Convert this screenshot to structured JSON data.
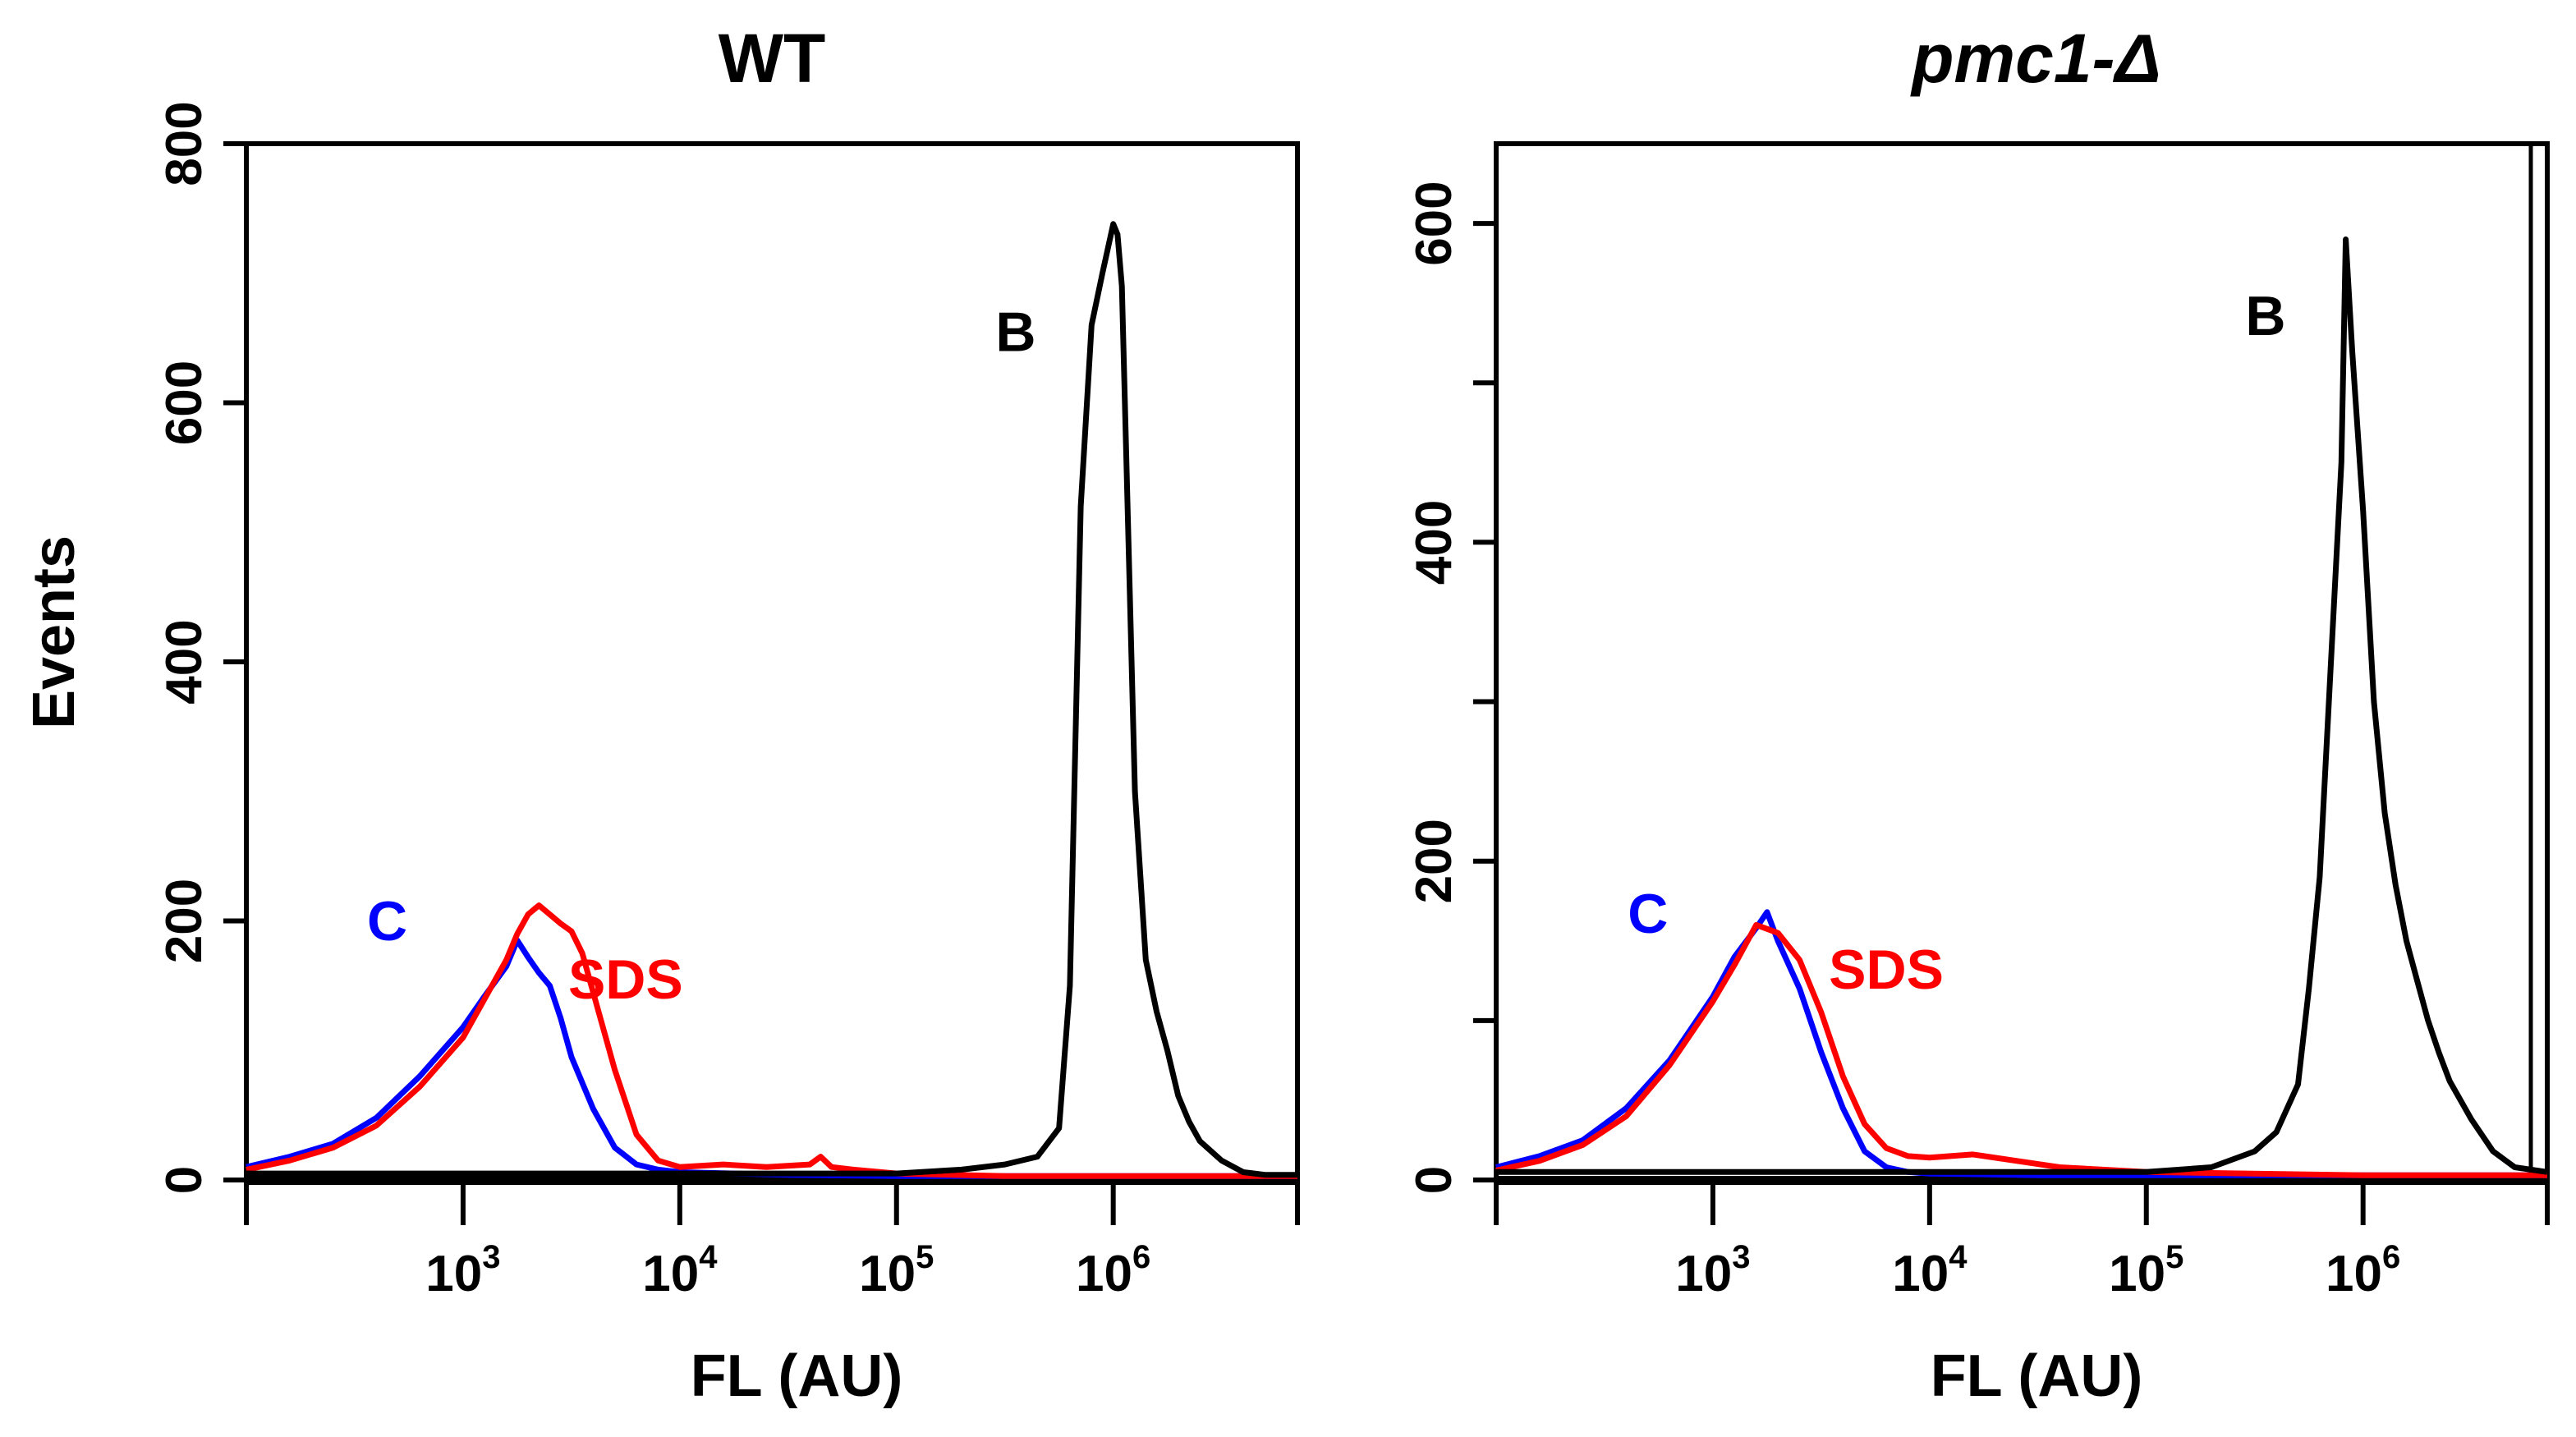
{
  "chart_data": [
    {
      "type": "line",
      "title": "WT",
      "xlabel": "FL (AU)",
      "ylabel": "Events",
      "xscale": "log",
      "xlim_log10": [
        2.0,
        6.85
      ],
      "ylim": [
        0,
        800
      ],
      "yticks": [
        0,
        200,
        400,
        600,
        800
      ],
      "xticks": [
        {
          "base": "10",
          "exp": "3",
          "log10": 3
        },
        {
          "base": "10",
          "exp": "4",
          "log10": 4
        },
        {
          "base": "10",
          "exp": "5",
          "log10": 5
        },
        {
          "base": "10",
          "exp": "6",
          "log10": 6
        }
      ],
      "grid": false,
      "series": [
        {
          "name": "C",
          "color": "#0000ff",
          "x_log10": [
            2.0,
            2.2,
            2.4,
            2.6,
            2.8,
            3.0,
            3.1,
            3.2,
            3.25,
            3.3,
            3.35,
            3.4,
            3.45,
            3.5,
            3.6,
            3.7,
            3.8,
            3.9,
            4.0,
            4.5,
            5.0,
            5.5,
            6.0,
            6.85
          ],
          "y": [
            10,
            18,
            28,
            48,
            80,
            118,
            142,
            165,
            185,
            172,
            160,
            150,
            125,
            95,
            55,
            25,
            12,
            8,
            6,
            4,
            3,
            3,
            3,
            3
          ]
        },
        {
          "name": "SDS",
          "color": "#ff0000",
          "x_log10": [
            2.0,
            2.2,
            2.4,
            2.6,
            2.8,
            3.0,
            3.1,
            3.2,
            3.25,
            3.3,
            3.35,
            3.4,
            3.45,
            3.5,
            3.55,
            3.6,
            3.7,
            3.8,
            3.9,
            4.0,
            4.2,
            4.4,
            4.6,
            4.65,
            4.7,
            4.8,
            5.0,
            5.5,
            6.0,
            6.85
          ],
          "y": [
            8,
            15,
            25,
            42,
            72,
            110,
            140,
            170,
            190,
            205,
            212,
            205,
            198,
            192,
            175,
            145,
            85,
            35,
            15,
            10,
            12,
            10,
            12,
            18,
            10,
            8,
            5,
            3,
            3,
            3
          ]
        },
        {
          "name": "B",
          "color": "#000000",
          "x_log10": [
            2.0,
            4.0,
            5.0,
            5.3,
            5.5,
            5.65,
            5.75,
            5.8,
            5.85,
            5.9,
            5.95,
            6.0,
            6.02,
            6.04,
            6.06,
            6.08,
            6.1,
            6.15,
            6.2,
            6.25,
            6.3,
            6.35,
            6.4,
            6.5,
            6.6,
            6.7,
            6.85
          ],
          "y": [
            5,
            5,
            5,
            8,
            12,
            18,
            40,
            150,
            520,
            660,
            700,
            738,
            730,
            690,
            560,
            430,
            300,
            170,
            130,
            100,
            65,
            45,
            30,
            15,
            6,
            4,
            4
          ]
        }
      ],
      "annotations": [
        {
          "text": "C",
          "color": "#0000ff",
          "at": [
            2.65,
            185
          ]
        },
        {
          "text": "SDS",
          "color": "#ff0000",
          "at": [
            3.75,
            140
          ]
        },
        {
          "text": "B",
          "color": "#000000",
          "at": [
            5.55,
            640
          ]
        }
      ]
    },
    {
      "type": "line",
      "title": "pmc1-Δ",
      "xlabel": "FL (AU)",
      "ylabel": "",
      "xscale": "log",
      "xlim_log10": [
        2.0,
        6.85
      ],
      "ylim": [
        0,
        650
      ],
      "yticks": [
        0,
        100,
        200,
        300,
        400,
        500,
        600
      ],
      "ytick_labels": [
        "0",
        "",
        "200",
        "",
        "400",
        "",
        "600"
      ],
      "xticks": [
        {
          "base": "10",
          "exp": "3",
          "log10": 3
        },
        {
          "base": "10",
          "exp": "4",
          "log10": 4
        },
        {
          "base": "10",
          "exp": "5",
          "log10": 5
        },
        {
          "base": "10",
          "exp": "6",
          "log10": 6
        }
      ],
      "grid": false,
      "series": [
        {
          "name": "C",
          "color": "#0000ff",
          "x_log10": [
            2.0,
            2.2,
            2.4,
            2.6,
            2.8,
            2.9,
            3.0,
            3.1,
            3.2,
            3.25,
            3.3,
            3.4,
            3.5,
            3.6,
            3.7,
            3.8,
            3.9,
            4.0,
            4.5,
            5.0,
            6.0,
            6.85
          ],
          "y": [
            8,
            15,
            25,
            45,
            75,
            95,
            115,
            140,
            158,
            168,
            150,
            120,
            80,
            45,
            18,
            8,
            5,
            4,
            3,
            3,
            3,
            3
          ]
        },
        {
          "name": "SDS",
          "color": "#ff0000",
          "x_log10": [
            2.0,
            2.2,
            2.4,
            2.6,
            2.8,
            2.9,
            3.0,
            3.1,
            3.2,
            3.3,
            3.4,
            3.5,
            3.6,
            3.7,
            3.8,
            3.9,
            4.0,
            4.2,
            4.4,
            4.6,
            5.0,
            6.0,
            6.85
          ],
          "y": [
            6,
            12,
            22,
            40,
            72,
            92,
            112,
            135,
            160,
            155,
            138,
            105,
            65,
            35,
            20,
            15,
            14,
            16,
            12,
            8,
            5,
            3,
            3
          ]
        },
        {
          "name": "B",
          "color": "#000000",
          "x_log10": [
            2.0,
            4.0,
            5.0,
            5.3,
            5.5,
            5.6,
            5.7,
            5.75,
            5.8,
            5.85,
            5.9,
            5.92,
            5.95,
            6.0,
            6.05,
            6.1,
            6.15,
            6.2,
            6.25,
            6.3,
            6.35,
            6.4,
            6.5,
            6.6,
            6.7,
            6.85
          ],
          "y": [
            5,
            5,
            5,
            8,
            18,
            30,
            60,
            120,
            190,
            320,
            450,
            590,
            520,
            420,
            300,
            230,
            185,
            150,
            125,
            100,
            80,
            62,
            38,
            18,
            8,
            5
          ]
        }
      ],
      "annotations": [
        {
          "text": "C",
          "color": "#0000ff",
          "at": [
            2.7,
            155
          ]
        },
        {
          "text": "SDS",
          "color": "#ff0000",
          "at": [
            3.8,
            120
          ]
        },
        {
          "text": "B",
          "color": "#000000",
          "at": [
            5.55,
            530
          ]
        }
      ]
    }
  ]
}
